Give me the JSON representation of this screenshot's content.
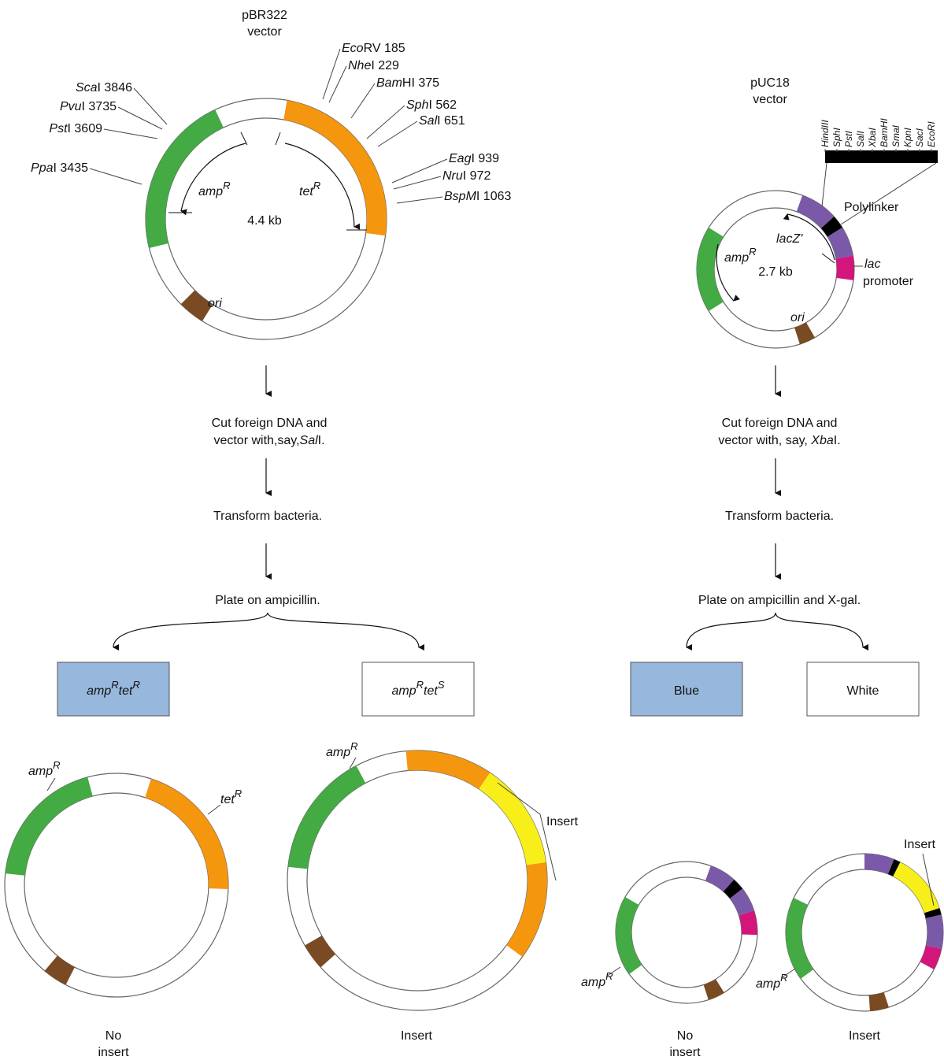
{
  "colors": {
    "green": "#44aa44",
    "orange": "#f5960f",
    "brown": "#7a4a22",
    "purple": "#7a5aa8",
    "magenta": "#d4167c",
    "black": "#000000",
    "yellow": "#f8ef1a",
    "box_blue": "#97b8dc"
  },
  "pbr322": {
    "title_line1": "pBR322",
    "title_line2": "vector",
    "size": "4.4 kb",
    "amp_gene": "amp",
    "tet_gene": "tet",
    "sup_r": "R",
    "ori": "ori",
    "sites_right": [
      {
        "ital": "Eco",
        "rest": "RV 185"
      },
      {
        "ital": "Nhe",
        "rest": "I 229"
      },
      {
        "ital": "Bam",
        "rest": "HI 375"
      },
      {
        "ital": "Sph",
        "rest": "I 562"
      },
      {
        "ital": "Sal",
        "rest": "I 651"
      },
      {
        "ital": "Eag",
        "rest": "I 939"
      },
      {
        "ital": "Nru",
        "rest": "I 972"
      },
      {
        "ital": "BspM",
        "rest": "I 1063"
      }
    ],
    "sites_left": [
      {
        "ital": "Sca",
        "rest": "I 3846"
      },
      {
        "ital": "Pvu",
        "rest": "I 3735"
      },
      {
        "ital": "Pst",
        "rest": "I 3609"
      },
      {
        "ital": "Ppa",
        "rest": "I 3435"
      }
    ],
    "step1_line1": "Cut foreign DNA and",
    "step1_line2_a": "vector with,say,",
    "step1_line2_ital": "Sal",
    "step1_line2_b": "I.",
    "step2": "Transform bacteria.",
    "step3": "Plate on ampicillin.",
    "box1": {
      "g1": "amp",
      "s1": "R",
      "g2": "tet",
      "s2": "R"
    },
    "box2": {
      "g1": "amp",
      "s1": "R",
      "g2": "tet",
      "s2": "S"
    },
    "bottom_noinsert_line1": "No",
    "bottom_noinsert_line2": "insert",
    "bottom_insert": "Insert",
    "insert_label": "Insert"
  },
  "puc18": {
    "title_line1": "pUC18",
    "title_line2": "vector",
    "size": "2.7 kb",
    "amp_gene": "amp",
    "sup_r": "R",
    "lacz": "lacZ'",
    "ori": "ori",
    "polylinker": "Polylinker",
    "lac_ital": "lac",
    "promoter": "promoter",
    "polylinker_sites": [
      "HindIII",
      "SphI",
      "PstI",
      "SalI",
      "XbaI",
      "BamHI",
      "SmaI",
      "KpnI",
      "SacI",
      "EcoRI"
    ],
    "step1_line1": "Cut foreign DNA and",
    "step1_line2_a": "vector with, say, ",
    "step1_line2_ital": "Xba",
    "step1_line2_b": "I.",
    "step2": "Transform bacteria.",
    "step3": "Plate on ampicillin and X-gal.",
    "box1": "Blue",
    "box2": "White",
    "bottom_noinsert_line1": "No",
    "bottom_noinsert_line2": "insert",
    "bottom_insert": "Insert",
    "insert_label": "Insert"
  }
}
